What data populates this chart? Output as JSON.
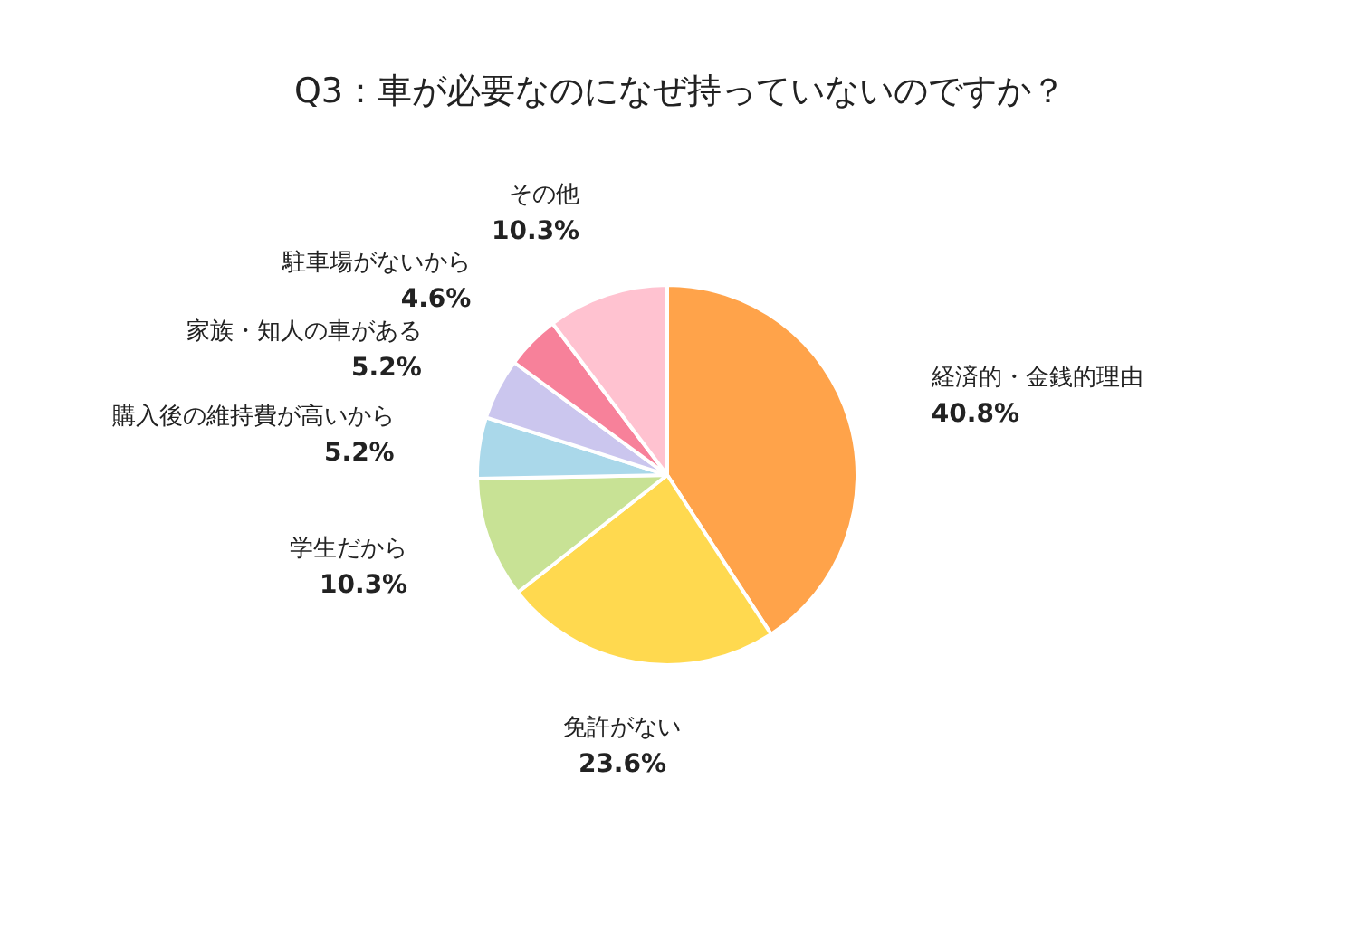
{
  "chart_data": {
    "type": "pie",
    "title": "Q3：車が必要なのになぜ持っていないのですか？",
    "categories": [
      "経済的・金銭的理由",
      "免許がない",
      "学生だから",
      "購入後の維持費が高いから",
      "家族・知人の車がある",
      "駐車場がないから",
      "その他"
    ],
    "values": [
      40.8,
      23.6,
      10.3,
      5.2,
      5.2,
      4.6,
      10.3
    ],
    "value_labels": [
      "40.8%",
      "23.6%",
      "10.3%",
      "5.2%",
      "5.2%",
      "4.6%",
      "10.3%"
    ],
    "colors": [
      "#ffa34a",
      "#ffd94f",
      "#c8e295",
      "#aad8ea",
      "#cbc6ee",
      "#f7819a",
      "#ffc2d0"
    ]
  }
}
